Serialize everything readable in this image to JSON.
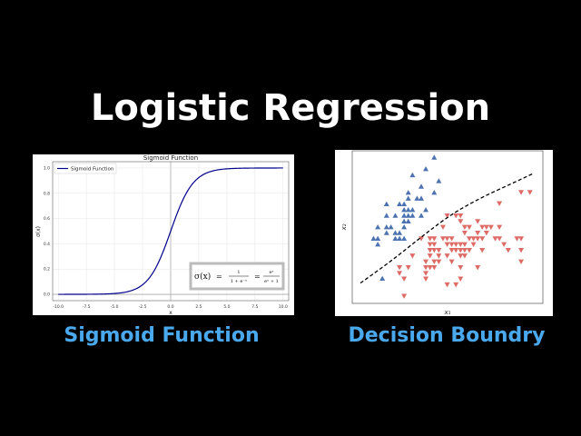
{
  "title": "Logistic Regression",
  "captions": {
    "left": "Sigmoid Function",
    "right": "Decision Boundry"
  },
  "colors": {
    "caption": "#4aa8ec",
    "sigmoid_line": "#00008b",
    "class_a": "#4c72b0",
    "class_b": "#dd6b66"
  },
  "chart_data": [
    {
      "type": "line",
      "title": "Sigmoid Function",
      "xlabel": "x",
      "ylabel": "σ(x)",
      "xlim": [
        -10.5,
        10.5
      ],
      "ylim": [
        -0.05,
        1.05
      ],
      "xticks": [
        "-10.0",
        "-7.5",
        "-5.0",
        "-2.5",
        "0.0",
        "2.5",
        "5.0",
        "7.5",
        "10.0"
      ],
      "yticks": [
        "0.0",
        "0.2",
        "0.4",
        "0.6",
        "0.8",
        "1.0"
      ],
      "grid": true,
      "legend": {
        "placement": "top-left",
        "entries": [
          "Sigmoid Function"
        ]
      },
      "series": [
        {
          "name": "Sigmoid Function",
          "function": "1/(1+e^-x)",
          "x_range": [
            -10,
            10
          ]
        }
      ],
      "annotation": {
        "lhs": "σ(x)",
        "eq": "=",
        "frac1_num": "1",
        "frac1_den": "1 + e⁻ˣ",
        "frac2_num": "eˣ",
        "frac2_den": "eˣ + 1"
      }
    },
    {
      "type": "scatter",
      "xlabel": "x₁",
      "ylabel": "x₂",
      "xlim": [
        0,
        100
      ],
      "ylim": [
        0,
        100
      ],
      "grid": false,
      "series": [
        {
          "marker": "triangle-up",
          "color": "#4c72b0",
          "points": [
            [
              43,
              95.6
            ],
            [
              38.6,
              88.1
            ],
            [
              31.6,
              84.1
            ],
            [
              45.4,
              80.2
            ],
            [
              36.2,
              76.6
            ],
            [
              29.4,
              72.6
            ],
            [
              43,
              72.6
            ],
            [
              29.4,
              68.8
            ],
            [
              34,
              68.8
            ],
            [
              36.2,
              68.8
            ],
            [
              18,
              65.1
            ],
            [
              24.8,
              65.1
            ],
            [
              27.2,
              65.1
            ],
            [
              27.2,
              61.3
            ],
            [
              29.4,
              61.3
            ],
            [
              31.6,
              61.3
            ],
            [
              38.6,
              61.3
            ],
            [
              18,
              57.5
            ],
            [
              22.6,
              57.5
            ],
            [
              27.2,
              57.5
            ],
            [
              29.4,
              57.5
            ],
            [
              31.6,
              57.5
            ],
            [
              36.2,
              57.5
            ],
            [
              27.2,
              53.8
            ],
            [
              29.4,
              53.8
            ],
            [
              13.4,
              50
            ],
            [
              18,
              50
            ],
            [
              20.3,
              50
            ],
            [
              27.2,
              50
            ],
            [
              18,
              46.2
            ],
            [
              22.6,
              46.2
            ],
            [
              24.8,
              46.2
            ],
            [
              11.2,
              42.5
            ],
            [
              13.4,
              42.5
            ],
            [
              22.6,
              42.5
            ],
            [
              24.8,
              42.5
            ],
            [
              27.2,
              42.5
            ],
            [
              13.4,
              38.7
            ],
            [
              15.8,
              16.3
            ]
          ]
        },
        {
          "marker": "triangle-down",
          "color": "#dd6b66",
          "points": [
            [
              88.6,
              72.8
            ],
            [
              93.2,
              72.8
            ],
            [
              77.2,
              65.5
            ],
            [
              49.8,
              57.5
            ],
            [
              54.4,
              57.5
            ],
            [
              56.8,
              57.5
            ],
            [
              56.8,
              53.8
            ],
            [
              65.8,
              53.8
            ],
            [
              47.6,
              50
            ],
            [
              59,
              50
            ],
            [
              61.4,
              50
            ],
            [
              68.2,
              50
            ],
            [
              70.4,
              50
            ],
            [
              72.8,
              50
            ],
            [
              77.2,
              50
            ],
            [
              59,
              46.2
            ],
            [
              65.8,
              46.2
            ],
            [
              70.4,
              46.2
            ],
            [
              36.2,
              42.5
            ],
            [
              40.8,
              42.5
            ],
            [
              43,
              42.5
            ],
            [
              47.6,
              42.5
            ],
            [
              49.8,
              42.5
            ],
            [
              52.2,
              42.5
            ],
            [
              61.4,
              42.5
            ],
            [
              63.6,
              42.5
            ],
            [
              65.8,
              42.5
            ],
            [
              68.2,
              42.5
            ],
            [
              75,
              42.5
            ],
            [
              77.2,
              42.5
            ],
            [
              86.4,
              42.5
            ],
            [
              88.6,
              42.5
            ],
            [
              40.8,
              38.7
            ],
            [
              43,
              38.7
            ],
            [
              49.8,
              38.7
            ],
            [
              52.2,
              38.7
            ],
            [
              54.4,
              38.7
            ],
            [
              56.8,
              38.7
            ],
            [
              59,
              38.7
            ],
            [
              63.6,
              38.7
            ],
            [
              79.6,
              38.7
            ],
            [
              40.8,
              34.9
            ],
            [
              43,
              34.9
            ],
            [
              45.4,
              34.9
            ],
            [
              52.2,
              34.9
            ],
            [
              54.4,
              34.9
            ],
            [
              56.8,
              34.9
            ],
            [
              59,
              34.9
            ],
            [
              61.4,
              34.9
            ],
            [
              68.2,
              34.9
            ],
            [
              81.8,
              34.9
            ],
            [
              88.6,
              34.9
            ],
            [
              31.6,
              31.2
            ],
            [
              40.8,
              31.2
            ],
            [
              45.4,
              31.2
            ],
            [
              49.8,
              31.2
            ],
            [
              56.8,
              31.2
            ],
            [
              59,
              31.2
            ],
            [
              38.6,
              27.4
            ],
            [
              43,
              27.4
            ],
            [
              45.4,
              27.4
            ],
            [
              52.2,
              27.4
            ],
            [
              88.6,
              27.4
            ],
            [
              24.8,
              23.6
            ],
            [
              29.4,
              23.6
            ],
            [
              38.6,
              23.6
            ],
            [
              40.8,
              23.6
            ],
            [
              43,
              23.6
            ],
            [
              56.8,
              23.6
            ],
            [
              65.8,
              23.6
            ],
            [
              24.8,
              19.8
            ],
            [
              38.6,
              19.8
            ],
            [
              27.2,
              16.1
            ],
            [
              38.6,
              16.1
            ],
            [
              56.8,
              16.1
            ],
            [
              49.8,
              12.3
            ],
            [
              54.4,
              12.3
            ],
            [
              27.2,
              4.8
            ]
          ]
        }
      ],
      "decision_boundary": {
        "style": "dashed",
        "color": "#000000",
        "points": [
          [
            4.3,
            13.3
          ],
          [
            20.9,
            28.2
          ],
          [
            36.7,
            44
          ],
          [
            52.5,
            58.9
          ],
          [
            68.4,
            69.8
          ],
          [
            84.2,
            78.8
          ],
          [
            94.9,
            85.1
          ]
        ]
      }
    }
  ]
}
